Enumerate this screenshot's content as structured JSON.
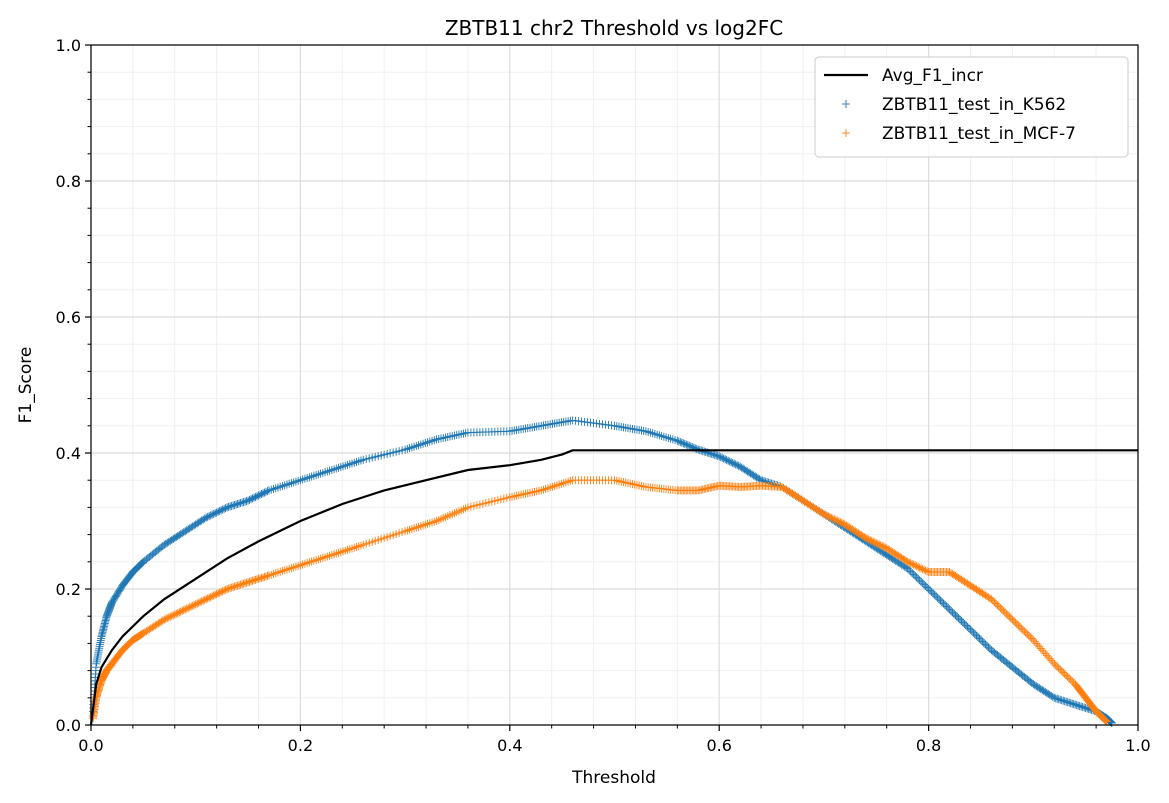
{
  "chart_data": {
    "type": "line",
    "title": "ZBTB11 chr2 Threshold vs log2FC",
    "xlabel": "Threshold",
    "ylabel": "F1_Score",
    "xlim": [
      0.0,
      1.0
    ],
    "ylim": [
      0.0,
      1.0
    ],
    "x_ticks": [
      "0.0",
      "0.2",
      "0.4",
      "0.6",
      "0.8",
      "1.0"
    ],
    "y_ticks": [
      "0.0",
      "0.2",
      "0.4",
      "0.6",
      "0.8",
      "1.0"
    ],
    "grid": true,
    "legend_position": "top-right",
    "series": [
      {
        "name": "Avg_F1_incr",
        "style": "line",
        "color": "#000000",
        "points": [
          [
            0.0,
            0.0
          ],
          [
            0.005,
            0.06
          ],
          [
            0.01,
            0.085
          ],
          [
            0.02,
            0.11
          ],
          [
            0.03,
            0.13
          ],
          [
            0.05,
            0.16
          ],
          [
            0.07,
            0.185
          ],
          [
            0.1,
            0.215
          ],
          [
            0.13,
            0.245
          ],
          [
            0.16,
            0.27
          ],
          [
            0.2,
            0.3
          ],
          [
            0.24,
            0.325
          ],
          [
            0.28,
            0.345
          ],
          [
            0.32,
            0.36
          ],
          [
            0.36,
            0.375
          ],
          [
            0.4,
            0.382
          ],
          [
            0.43,
            0.39
          ],
          [
            0.45,
            0.398
          ],
          [
            0.46,
            0.404
          ],
          [
            0.5,
            0.404
          ],
          [
            0.6,
            0.404
          ],
          [
            0.7,
            0.404
          ],
          [
            0.8,
            0.404
          ],
          [
            0.9,
            0.404
          ],
          [
            1.0,
            0.404
          ]
        ]
      },
      {
        "name": "ZBTB11_test_in_K562",
        "style": "marker",
        "color": "#1f77b4",
        "points": [
          [
            0.002,
            0.02
          ],
          [
            0.005,
            0.09
          ],
          [
            0.01,
            0.13
          ],
          [
            0.015,
            0.16
          ],
          [
            0.02,
            0.18
          ],
          [
            0.03,
            0.205
          ],
          [
            0.04,
            0.225
          ],
          [
            0.05,
            0.24
          ],
          [
            0.07,
            0.265
          ],
          [
            0.09,
            0.285
          ],
          [
            0.11,
            0.305
          ],
          [
            0.13,
            0.32
          ],
          [
            0.15,
            0.33
          ],
          [
            0.17,
            0.345
          ],
          [
            0.2,
            0.36
          ],
          [
            0.23,
            0.375
          ],
          [
            0.26,
            0.39
          ],
          [
            0.3,
            0.405
          ],
          [
            0.33,
            0.42
          ],
          [
            0.36,
            0.43
          ],
          [
            0.4,
            0.432
          ],
          [
            0.43,
            0.44
          ],
          [
            0.46,
            0.448
          ],
          [
            0.5,
            0.44
          ],
          [
            0.53,
            0.432
          ],
          [
            0.56,
            0.418
          ],
          [
            0.58,
            0.405
          ],
          [
            0.6,
            0.395
          ],
          [
            0.62,
            0.38
          ],
          [
            0.64,
            0.36
          ],
          [
            0.66,
            0.35
          ],
          [
            0.68,
            0.33
          ],
          [
            0.7,
            0.31
          ],
          [
            0.72,
            0.29
          ],
          [
            0.74,
            0.27
          ],
          [
            0.76,
            0.25
          ],
          [
            0.78,
            0.23
          ],
          [
            0.8,
            0.2
          ],
          [
            0.82,
            0.17
          ],
          [
            0.84,
            0.14
          ],
          [
            0.86,
            0.11
          ],
          [
            0.88,
            0.085
          ],
          [
            0.9,
            0.06
          ],
          [
            0.92,
            0.04
          ],
          [
            0.94,
            0.03
          ],
          [
            0.96,
            0.02
          ],
          [
            0.97,
            0.01
          ],
          [
            0.975,
            0.003
          ]
        ]
      },
      {
        "name": "ZBTB11_test_in_MCF-7",
        "style": "marker",
        "color": "#ff7f0e",
        "points": [
          [
            0.002,
            0.01
          ],
          [
            0.005,
            0.04
          ],
          [
            0.01,
            0.065
          ],
          [
            0.015,
            0.08
          ],
          [
            0.02,
            0.09
          ],
          [
            0.03,
            0.11
          ],
          [
            0.04,
            0.125
          ],
          [
            0.05,
            0.135
          ],
          [
            0.07,
            0.155
          ],
          [
            0.09,
            0.17
          ],
          [
            0.11,
            0.185
          ],
          [
            0.13,
            0.2
          ],
          [
            0.15,
            0.21
          ],
          [
            0.17,
            0.22
          ],
          [
            0.2,
            0.235
          ],
          [
            0.23,
            0.25
          ],
          [
            0.26,
            0.265
          ],
          [
            0.3,
            0.285
          ],
          [
            0.33,
            0.3
          ],
          [
            0.36,
            0.32
          ],
          [
            0.4,
            0.335
          ],
          [
            0.43,
            0.345
          ],
          [
            0.46,
            0.36
          ],
          [
            0.5,
            0.36
          ],
          [
            0.53,
            0.35
          ],
          [
            0.56,
            0.345
          ],
          [
            0.58,
            0.345
          ],
          [
            0.6,
            0.352
          ],
          [
            0.62,
            0.35
          ],
          [
            0.64,
            0.352
          ],
          [
            0.66,
            0.35
          ],
          [
            0.68,
            0.33
          ],
          [
            0.7,
            0.31
          ],
          [
            0.72,
            0.295
          ],
          [
            0.74,
            0.275
          ],
          [
            0.76,
            0.26
          ],
          [
            0.78,
            0.24
          ],
          [
            0.8,
            0.225
          ],
          [
            0.82,
            0.225
          ],
          [
            0.84,
            0.205
          ],
          [
            0.86,
            0.185
          ],
          [
            0.88,
            0.155
          ],
          [
            0.9,
            0.125
          ],
          [
            0.92,
            0.09
          ],
          [
            0.94,
            0.06
          ],
          [
            0.95,
            0.04
          ],
          [
            0.96,
            0.02
          ],
          [
            0.97,
            0.005
          ]
        ]
      }
    ]
  }
}
